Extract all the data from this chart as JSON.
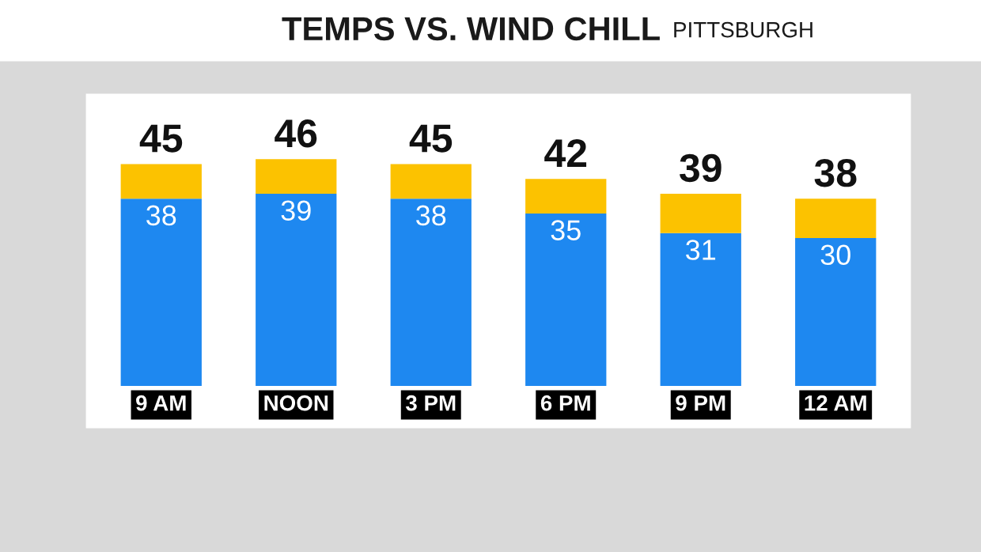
{
  "chart_data": {
    "type": "bar",
    "title": "TEMPS VS. WIND CHILL",
    "subtitle": "PITTSBURGH",
    "categories": [
      "9 AM",
      "NOON",
      "3 PM",
      "6 PM",
      "9 PM",
      "12 AM"
    ],
    "stacked": true,
    "series": [
      {
        "color": "#1e88f0",
        "values": [
          38,
          39,
          38,
          35,
          31,
          30
        ],
        "value_labels": [
          "38",
          "39",
          "38",
          "35",
          "31",
          "30"
        ]
      },
      {
        "color": "#fcc200",
        "values": [
          7,
          7,
          7,
          7,
          8,
          8
        ]
      }
    ],
    "totals": [
      "45",
      "46",
      "45",
      "42",
      "39",
      "38"
    ],
    "tick_labels": "x",
    "grid": false,
    "legend": false
  }
}
